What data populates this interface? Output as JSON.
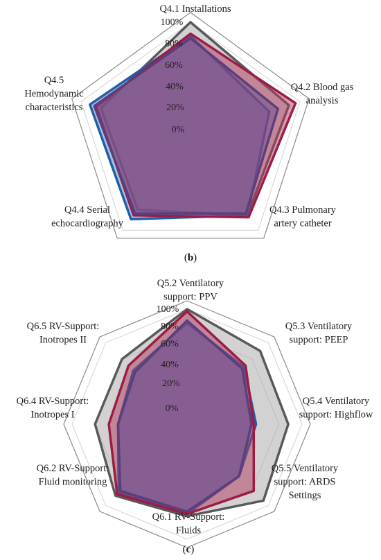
{
  "chart_data": [
    {
      "type": "radar",
      "panel_label": "(b)",
      "categories": [
        "Q4.1 Installations",
        "Q4.2 Blood gas analysis",
        "Q4.3 Pulmonary artery catheter",
        "Q4.4 Serial echocardiography",
        "Q4.5 Hemodynamic characteristics"
      ],
      "category_lines": [
        [
          "Q4.1 Installations"
        ],
        [
          "Q4.2 Blood gas",
          "analysis"
        ],
        [
          "Q4.3 Pulmonary",
          "artery catheter"
        ],
        [
          "Q4.4 Serial",
          "echocardiography"
        ],
        [
          "Q4.5",
          "Hemodynamic",
          "characteristics"
        ]
      ],
      "ticks": [
        "0%",
        "20%",
        "40%",
        "60%",
        "80%",
        "100%"
      ],
      "rlim": [
        0,
        100
      ],
      "series": [
        {
          "color": "#595959",
          "fill": "#a6a6a6",
          "values": [
            100,
            90,
            84,
            78,
            82
          ]
        },
        {
          "color": "#1f5fa6",
          "fill": "#4a86c5",
          "values": [
            88,
            72,
            84,
            88,
            92
          ]
        },
        {
          "color": "#9c1c46",
          "fill": "#b23a5e",
          "values": [
            90,
            96,
            86,
            84,
            86
          ]
        },
        {
          "color": "#5b3f7d",
          "fill": "#6e4a8e",
          "values": [
            86,
            80,
            82,
            82,
            88
          ]
        }
      ]
    },
    {
      "type": "radar",
      "panel_label": "(c)",
      "categories": [
        "Q5.2 Ventilatory support: PPV",
        "Q5.3 Ventilatory support: PEEP",
        "Q5.4 Ventilatory support: Highflow",
        "Q5.5 Ventilatory support: ARDS Settings",
        "Q6.1 RV-Support: Fluids",
        "Q6.2 RV-Support: Fluid monitoring",
        "Q6.4 RV-Support: Inotropes I",
        "Q6.5 RV-Support: Inotropes II"
      ],
      "category_lines": [
        [
          "Q5.2 Ventilatory",
          "support: PPV"
        ],
        [
          "Q5.3 Ventilatory",
          "support: PEEP"
        ],
        [
          "Q5.4 Ventilatory",
          "support: Highflow"
        ],
        [
          "Q5.5 Ventilatory",
          "support: ARDS",
          "Settings"
        ],
        [
          "Q6.1 RV-Support:",
          "Fluids"
        ],
        [
          "Q6.2 RV-Support:",
          "Fluid monitoring"
        ],
        [
          "Q6.4 RV-Support:",
          "Inotropes I"
        ],
        [
          "Q6.5 RV-Support:",
          "Inotropes II"
        ]
      ],
      "ticks": [
        "0%",
        "20%",
        "40%",
        "60%",
        "80%",
        "100%"
      ],
      "rlim": [
        0,
        100
      ],
      "series": [
        {
          "color": "#595959",
          "fill": "#a6a6a6",
          "values": [
            100,
            90,
            88,
            94,
            80,
            88,
            80,
            80
          ]
        },
        {
          "color": "#1f5fa6",
          "fill": "#4a86c5",
          "values": [
            88,
            70,
            60,
            64,
            78,
            84,
            60,
            66
          ]
        },
        {
          "color": "#9c1c46",
          "fill": "#b23a5e",
          "values": [
            98,
            72,
            58,
            82,
            78,
            86,
            68,
            72
          ]
        },
        {
          "color": "#5b3f7d",
          "fill": "#6e4a8e",
          "values": [
            90,
            68,
            56,
            64,
            76,
            82,
            60,
            64
          ]
        }
      ]
    }
  ]
}
